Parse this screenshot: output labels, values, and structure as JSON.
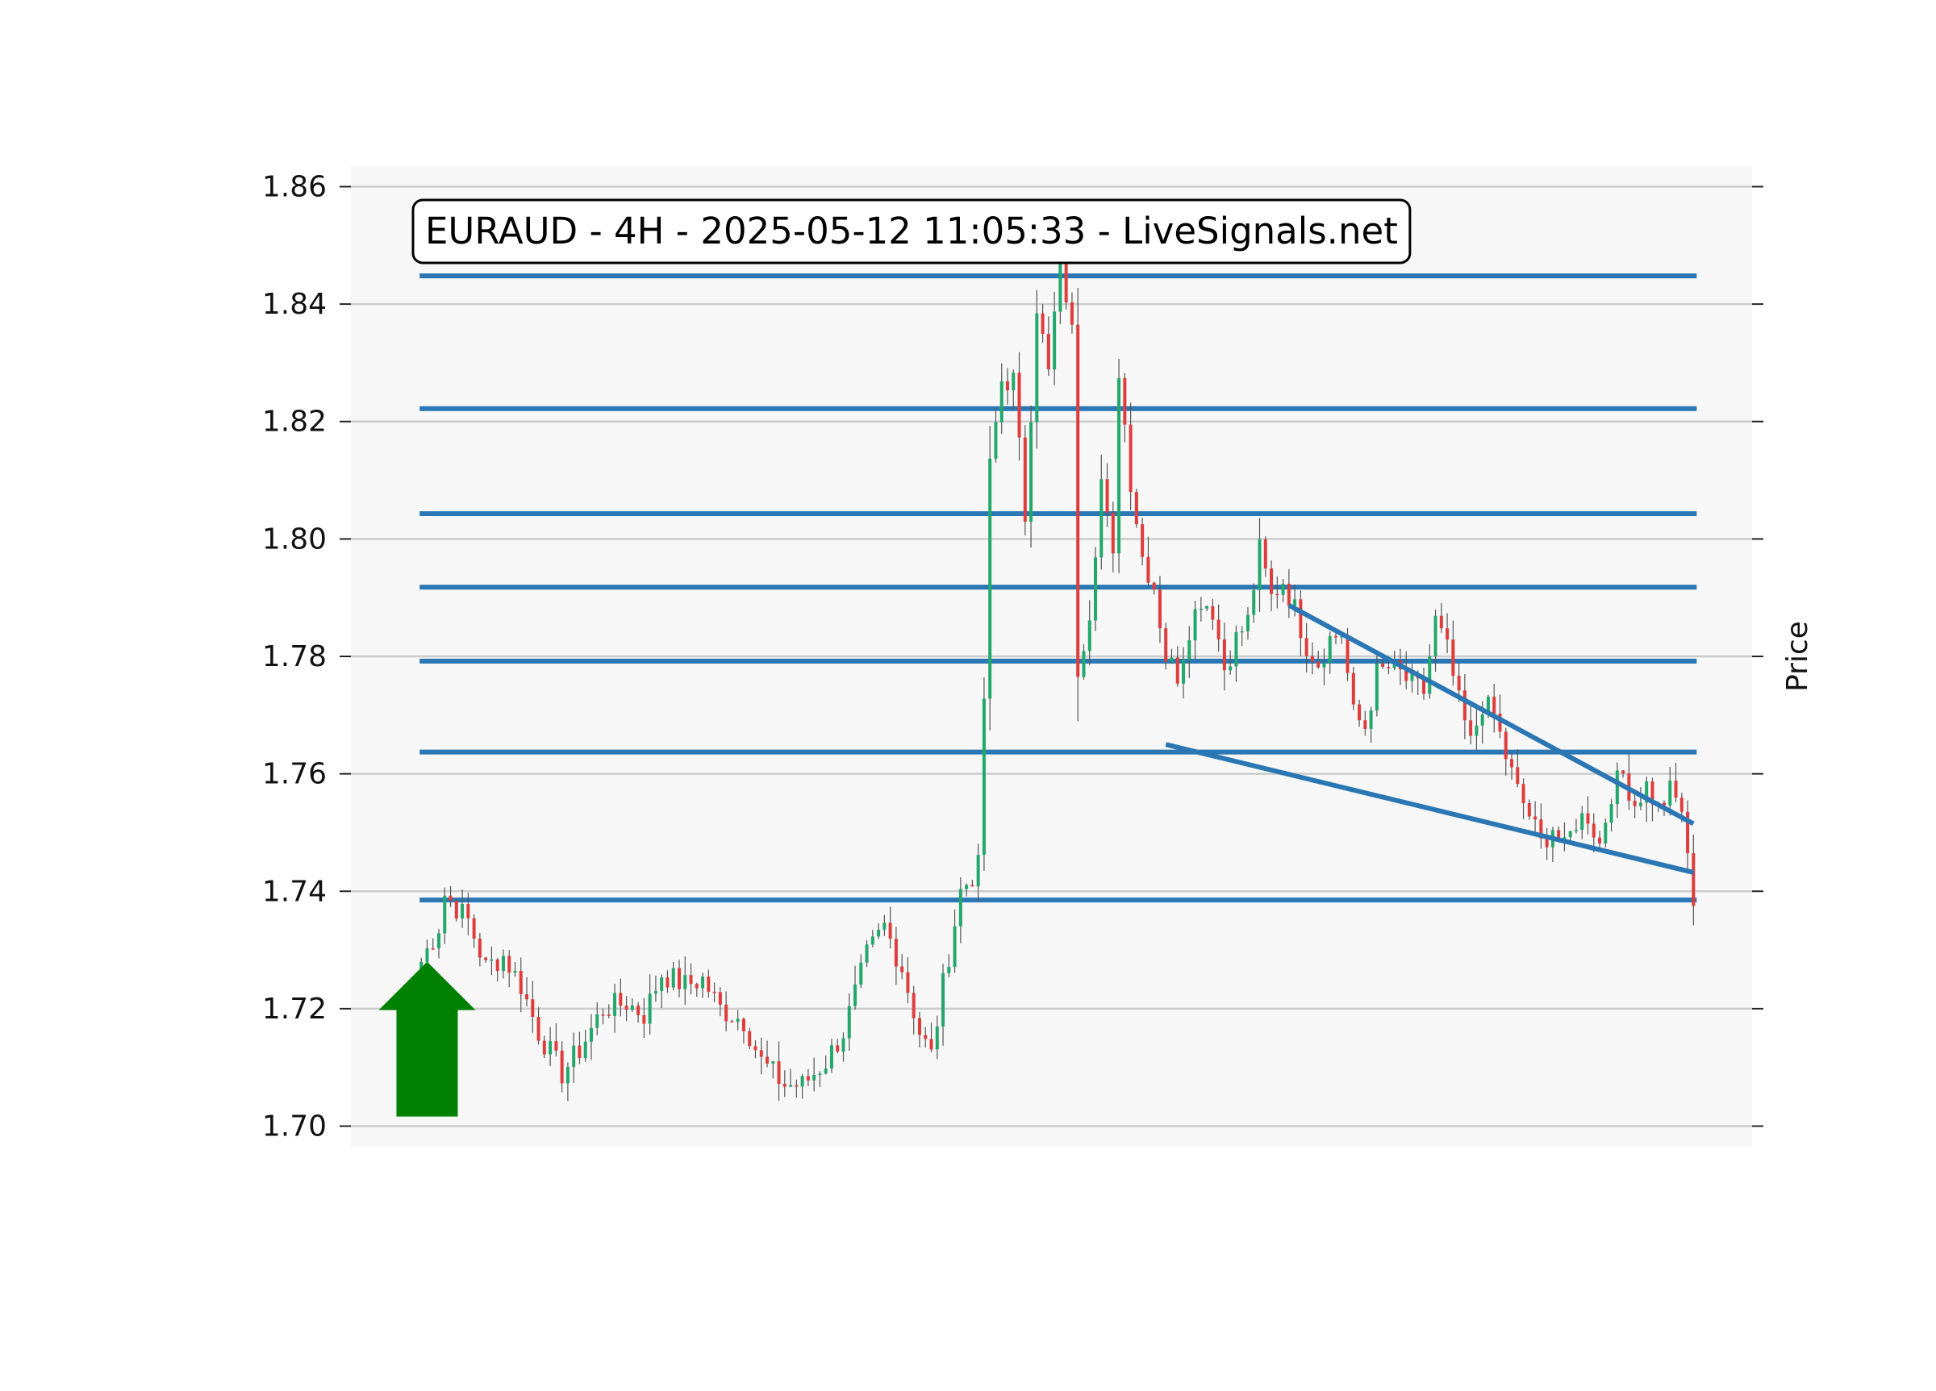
{
  "chart_data": {
    "type": "candlestick",
    "title": "EURAUD - 4H - 2025-05-12 11:05:33 - LiveSignals.net",
    "ylabel": "Price",
    "xlabel": "",
    "ylim": [
      1.6965,
      1.8635
    ],
    "yticks": [
      "1.70",
      "1.72",
      "1.74",
      "1.76",
      "1.78",
      "1.80",
      "1.82",
      "1.84",
      "1.86"
    ],
    "grid": "horizontal",
    "colors": {
      "up": "#22a86b",
      "down": "#e03c3c",
      "wick": "#555555",
      "levels": "#2a77b4",
      "arrow": "#008000",
      "plot_background": "#f7f7f7",
      "grid": "#cccccc"
    },
    "horizontal_levels": [
      1.8448,
      1.8222,
      1.8043,
      1.7918,
      1.7792,
      1.7637,
      1.7385
    ],
    "trendlines": [
      {
        "name": "upper",
        "from": [
          148,
          1.7887
        ],
        "to": [
          217,
          1.7515
        ]
      },
      {
        "name": "lower",
        "from": [
          127,
          1.765
        ],
        "to": [
          217,
          1.7432
        ]
      }
    ],
    "signal": {
      "type": "buy-arrow",
      "index": 1,
      "price": 1.728
    },
    "x_range": [
      -12,
      227
    ],
    "waypoints": [
      [
        0,
        1.728
      ],
      [
        3,
        1.734
      ],
      [
        4,
        1.7395
      ],
      [
        8,
        1.735
      ],
      [
        11,
        1.727
      ],
      [
        14,
        1.729
      ],
      [
        17,
        1.724
      ],
      [
        20,
        1.716
      ],
      [
        24,
        1.709
      ],
      [
        27,
        1.713
      ],
      [
        31,
        1.72
      ],
      [
        35,
        1.721
      ],
      [
        38,
        1.719
      ],
      [
        41,
        1.726
      ],
      [
        45,
        1.724
      ],
      [
        48,
        1.725
      ],
      [
        51,
        1.72
      ],
      [
        55,
        1.718
      ],
      [
        58,
        1.711
      ],
      [
        62,
        1.707
      ],
      [
        65,
        1.707
      ],
      [
        69,
        1.711
      ],
      [
        72,
        1.716
      ],
      [
        76,
        1.729
      ],
      [
        79,
        1.734
      ],
      [
        82,
        1.727
      ],
      [
        85,
        1.716
      ],
      [
        87,
        1.712
      ],
      [
        89,
        1.724
      ],
      [
        92,
        1.74
      ],
      [
        95,
        1.744
      ],
      [
        96,
        1.773
      ],
      [
        97,
        1.812
      ],
      [
        99,
        1.827
      ],
      [
        101,
        1.827
      ],
      [
        103,
        1.804
      ],
      [
        105,
        1.84
      ],
      [
        107,
        1.828
      ],
      [
        109,
        1.848
      ],
      [
        111,
        1.835
      ],
      [
        112,
        1.778
      ],
      [
        114,
        1.788
      ],
      [
        116,
        1.81
      ],
      [
        118,
        1.796
      ],
      [
        119,
        1.829
      ],
      [
        121,
        1.81
      ],
      [
        123,
        1.797
      ],
      [
        125,
        1.792
      ],
      [
        127,
        1.78
      ],
      [
        129,
        1.777
      ],
      [
        131,
        1.785
      ],
      [
        133,
        1.79
      ],
      [
        135,
        1.788
      ],
      [
        137,
        1.778
      ],
      [
        139,
        1.783
      ],
      [
        141,
        1.786
      ],
      [
        143,
        1.798
      ],
      [
        145,
        1.79
      ],
      [
        147,
        1.793
      ],
      [
        149,
        1.788
      ],
      [
        151,
        1.782
      ],
      [
        153,
        1.779
      ],
      [
        155,
        1.783
      ],
      [
        157,
        1.784
      ],
      [
        159,
        1.77
      ],
      [
        161,
        1.768
      ],
      [
        163,
        1.777
      ],
      [
        165,
        1.778
      ],
      [
        167,
        1.777
      ],
      [
        169,
        1.775
      ],
      [
        171,
        1.774
      ],
      [
        173,
        1.786
      ],
      [
        175,
        1.781
      ],
      [
        177,
        1.772
      ],
      [
        179,
        1.765
      ],
      [
        181,
        1.772
      ],
      [
        183,
        1.77
      ],
      [
        185,
        1.763
      ],
      [
        187,
        1.757
      ],
      [
        189,
        1.753
      ],
      [
        191,
        1.748
      ],
      [
        193,
        1.751
      ],
      [
        195,
        1.747
      ],
      [
        197,
        1.752
      ],
      [
        199,
        1.753
      ],
      [
        201,
        1.748
      ],
      [
        203,
        1.757
      ],
      [
        205,
        1.76
      ],
      [
        207,
        1.755
      ],
      [
        209,
        1.758
      ],
      [
        211,
        1.754
      ],
      [
        213,
        1.757
      ],
      [
        215,
        1.754
      ],
      [
        216,
        1.745
      ],
      [
        217,
        1.7375
      ]
    ]
  }
}
